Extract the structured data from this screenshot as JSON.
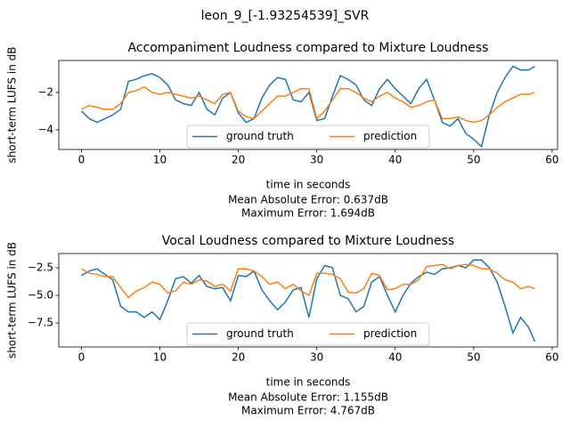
{
  "title": "leon_9_[-1.93254539]_SVR",
  "chart_data": [
    {
      "type": "line",
      "title": "Accompaniment Loudness compared to Mixture Loudness",
      "xlabel": "time in seconds",
      "ylabel": "short-term LUFS in dB",
      "notes": [
        "Mean Absolute Error: 0.637dB",
        "Maximum Error: 1.694dB"
      ],
      "x": [
        0,
        1,
        2,
        3,
        4,
        5,
        6,
        7,
        8,
        9,
        10,
        11,
        12,
        13,
        14,
        15,
        16,
        17,
        18,
        19,
        20,
        21,
        22,
        23,
        24,
        25,
        26,
        27,
        28,
        29,
        30,
        31,
        32,
        33,
        34,
        35,
        36,
        37,
        38,
        39,
        40,
        41,
        42,
        43,
        44,
        45,
        46,
        47,
        48,
        49,
        50,
        51,
        52,
        53,
        54,
        55,
        56,
        57,
        57.8
      ],
      "series": [
        {
          "name": "ground truth",
          "color": "#1f77b4",
          "values": [
            -3.0,
            -3.4,
            -3.6,
            -3.4,
            -3.2,
            -2.9,
            -1.4,
            -1.3,
            -1.1,
            -1.0,
            -1.2,
            -1.6,
            -2.4,
            -2.6,
            -2.7,
            -2.0,
            -2.9,
            -3.2,
            -2.3,
            -2.0,
            -3.1,
            -3.6,
            -3.4,
            -2.3,
            -1.6,
            -1.2,
            -1.3,
            -2.4,
            -2.5,
            -2.0,
            -3.5,
            -3.4,
            -2.2,
            -1.1,
            -1.3,
            -1.6,
            -2.4,
            -2.7,
            -1.8,
            -1.3,
            -1.8,
            -2.2,
            -2.6,
            -1.8,
            -1.3,
            -2.4,
            -3.6,
            -3.8,
            -3.4,
            -4.2,
            -4.5,
            -4.9,
            -3.2,
            -2.0,
            -1.2,
            -0.6,
            -0.8,
            -0.8,
            -0.6
          ]
        },
        {
          "name": "prediction",
          "color": "#ff7f0e",
          "values": [
            -2.9,
            -2.7,
            -2.8,
            -2.9,
            -2.9,
            -2.6,
            -2.0,
            -1.9,
            -1.7,
            -2.0,
            -2.1,
            -2.0,
            -2.1,
            -2.2,
            -2.3,
            -2.2,
            -2.4,
            -2.6,
            -2.1,
            -2.0,
            -3.0,
            -3.3,
            -3.4,
            -3.0,
            -2.6,
            -2.2,
            -2.2,
            -2.0,
            -1.8,
            -1.8,
            -3.4,
            -3.0,
            -2.4,
            -1.8,
            -1.8,
            -2.0,
            -2.3,
            -2.5,
            -2.2,
            -2.0,
            -2.3,
            -2.5,
            -2.8,
            -2.7,
            -2.5,
            -2.4,
            -3.4,
            -3.4,
            -3.3,
            -3.5,
            -3.6,
            -3.5,
            -3.2,
            -2.8,
            -2.5,
            -2.3,
            -2.1,
            -2.1,
            -2.0
          ]
        }
      ],
      "xlim": [
        -2.89,
        60.69
      ],
      "xticks": [
        0,
        10,
        20,
        30,
        40,
        50,
        60
      ],
      "ylim": [
        -5.05,
        -0.29
      ],
      "yticks": [
        {
          "value": -4,
          "label": "−4"
        },
        {
          "value": -2,
          "label": "−2"
        }
      ],
      "legend": "lower center"
    },
    {
      "type": "line",
      "title": "Vocal Loudness compared to Mixture Loudness",
      "xlabel": "time in seconds",
      "ylabel": "short-term LUFS in dB",
      "notes": [
        "Mean Absolute Error: 1.155dB",
        "Maximum Error: 4.767dB"
      ],
      "x": [
        0,
        1,
        2,
        3,
        4,
        5,
        6,
        7,
        8,
        9,
        10,
        11,
        12,
        13,
        14,
        15,
        16,
        17,
        18,
        19,
        20,
        21,
        22,
        23,
        24,
        25,
        26,
        27,
        28,
        29,
        30,
        31,
        32,
        33,
        34,
        35,
        36,
        37,
        38,
        39,
        40,
        41,
        42,
        43,
        44,
        45,
        46,
        47,
        48,
        49,
        50,
        51,
        52,
        53,
        54,
        55,
        56,
        57,
        57.8
      ],
      "series": [
        {
          "name": "ground truth",
          "color": "#1f77b4",
          "values": [
            -3.2,
            -2.8,
            -2.6,
            -3.1,
            -3.6,
            -6.0,
            -6.5,
            -6.5,
            -7.0,
            -6.5,
            -7.2,
            -5.5,
            -3.5,
            -3.3,
            -3.9,
            -3.2,
            -4.2,
            -4.4,
            -4.3,
            -5.5,
            -3.2,
            -3.3,
            -2.8,
            -4.5,
            -5.5,
            -6.3,
            -5.6,
            -4.5,
            -4.3,
            -7.0,
            -3.5,
            -2.3,
            -2.5,
            -5.0,
            -5.3,
            -6.5,
            -6.0,
            -3.8,
            -3.3,
            -5.0,
            -6.5,
            -5.0,
            -3.9,
            -3.3,
            -2.9,
            -3.1,
            -2.6,
            -2.5,
            -2.3,
            -2.5,
            -1.8,
            -1.8,
            -2.5,
            -3.8,
            -6.0,
            -8.4,
            -7.0,
            -7.9,
            -9.2
          ]
        },
        {
          "name": "prediction",
          "color": "#ff7f0e",
          "values": [
            -2.6,
            -3.0,
            -3.1,
            -3.3,
            -3.3,
            -4.3,
            -5.2,
            -4.6,
            -4.3,
            -3.8,
            -4.0,
            -4.8,
            -4.6,
            -3.8,
            -4.0,
            -3.6,
            -3.7,
            -4.2,
            -4.0,
            -4.6,
            -2.6,
            -2.6,
            -2.8,
            -3.3,
            -4.0,
            -3.8,
            -4.4,
            -4.0,
            -4.6,
            -5.0,
            -3.0,
            -3.0,
            -3.1,
            -3.5,
            -4.7,
            -4.8,
            -4.4,
            -3.0,
            -3.2,
            -4.5,
            -4.4,
            -4.0,
            -4.0,
            -3.6,
            -2.4,
            -2.3,
            -2.2,
            -2.6,
            -2.3,
            -2.2,
            -2.3,
            -2.6,
            -2.6,
            -3.0,
            -3.6,
            -3.8,
            -4.4,
            -4.2,
            -4.4
          ]
        }
      ],
      "xlim": [
        -2.89,
        60.69
      ],
      "xticks": [
        0,
        10,
        20,
        30,
        40,
        50,
        60
      ],
      "ylim": [
        -9.68,
        -1.21
      ],
      "yticks": [
        {
          "value": -7.5,
          "label": "−7.5"
        },
        {
          "value": -5,
          "label": "−5.0"
        },
        {
          "value": -2.5,
          "label": "−2.5"
        }
      ],
      "legend": "lower center"
    }
  ]
}
